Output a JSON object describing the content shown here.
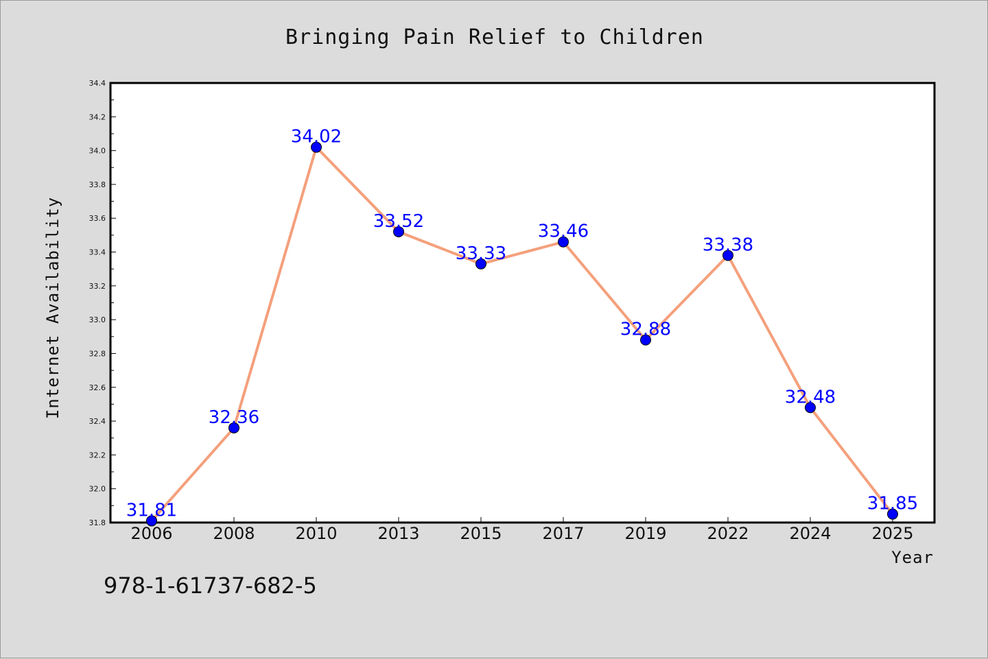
{
  "colors": {
    "background": "#dcdcdc",
    "plot_background": "#ffffff",
    "line": "#f4a07c",
    "marker": "#0000ff",
    "data_label": "#0000ff",
    "text": "#111111"
  },
  "footer": {
    "isbn": "978-1-61737-682-5"
  },
  "chart_data": {
    "type": "line",
    "title": "Bringing Pain Relief to Children",
    "xlabel": "Year",
    "ylabel": "Internet Availability",
    "categories": [
      "2006",
      "2008",
      "2010",
      "2013",
      "2015",
      "2017",
      "2019",
      "2022",
      "2024",
      "2025"
    ],
    "series": [
      {
        "values": [
          31.81,
          32.36,
          34.02,
          33.52,
          33.33,
          33.46,
          32.88,
          33.38,
          32.48,
          31.85
        ]
      }
    ],
    "data_labels": [
      "31.81",
      "32.36",
      "34.02",
      "33.52",
      "33.33",
      "33.46",
      "32.88",
      "33.38",
      "32.48",
      "31.85"
    ],
    "ylim": [
      31.8,
      34.4
    ],
    "yticks": [
      "31.8",
      "32.0",
      "32.2",
      "32.4",
      "32.6",
      "32.8",
      "33.0",
      "33.2",
      "33.4",
      "33.6",
      "33.8",
      "34.0",
      "34.2",
      "34.4"
    ],
    "grid": false,
    "legend": "none",
    "marker": "circle"
  }
}
